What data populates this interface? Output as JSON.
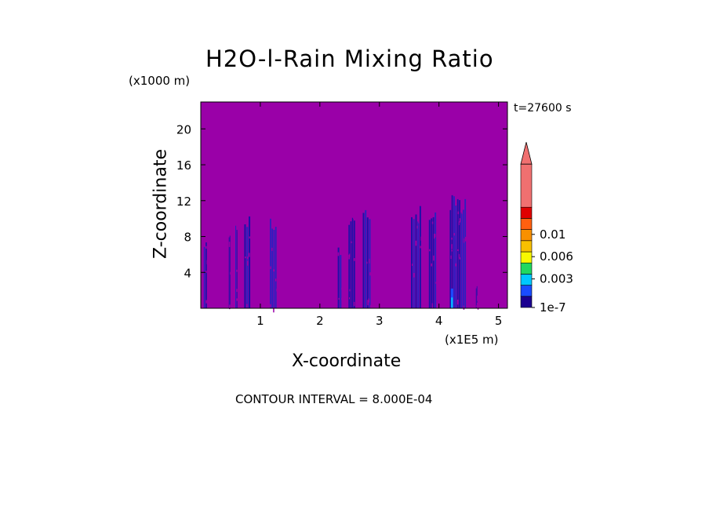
{
  "chart_data": {
    "type": "heatmap",
    "title": "H2O-l-Rain Mixing Ratio",
    "time_label": "t=27600 s",
    "xlabel": "X-coordinate",
    "ylabel": "Z-coordinate",
    "x_unit": "(x1E5 m)",
    "z_unit": "(x1000 m)",
    "xlim": [
      0,
      5.15
    ],
    "ylim": [
      0,
      23
    ],
    "x_ticks": [
      1,
      2,
      3,
      4,
      5
    ],
    "y_ticks": [
      4,
      8,
      12,
      16,
      20
    ],
    "background_color": "#9a00a8",
    "contour_interval_text": "CONTOUR INTERVAL = 8.000E-04",
    "colorbar": {
      "colors": [
        "#1b0090",
        "#1a4cff",
        "#00c8ff",
        "#20d860",
        "#f8f800",
        "#f8c000",
        "#f89000",
        "#ff6010",
        "#e00000",
        "#f07070"
      ],
      "labels": [
        "1e-7",
        "0.003",
        "0.006",
        "0.01"
      ],
      "label_positions": [
        0,
        2,
        4,
        6
      ],
      "extend_top": true
    },
    "rain_columns": [
      {
        "x": 0.05,
        "width": 0.06,
        "top": 7.5
      },
      {
        "x": 0.47,
        "width": 0.03,
        "top": 9.0
      },
      {
        "x": 0.58,
        "width": 0.04,
        "top": 9.5
      },
      {
        "x": 0.73,
        "width": 0.11,
        "top": 10.5
      },
      {
        "x": 1.16,
        "width": 0.12,
        "top": 10.5
      },
      {
        "x": 2.3,
        "width": 0.07,
        "top": 6.8
      },
      {
        "x": 2.48,
        "width": 0.12,
        "top": 10.2
      },
      {
        "x": 2.72,
        "width": 0.14,
        "top": 11.0
      },
      {
        "x": 3.53,
        "width": 0.18,
        "top": 11.5
      },
      {
        "x": 3.83,
        "width": 0.13,
        "top": 10.8
      },
      {
        "x": 4.18,
        "width": 0.28,
        "top": 12.8
      },
      {
        "x": 4.62,
        "width": 0.02,
        "top": 2.5
      }
    ]
  }
}
